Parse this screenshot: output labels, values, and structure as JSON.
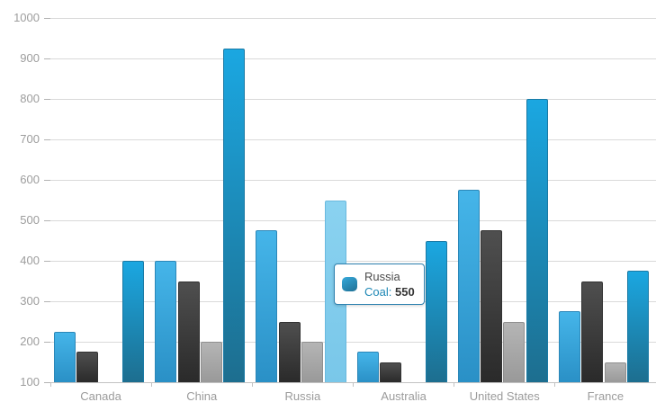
{
  "chart_data": {
    "type": "bar",
    "title": "",
    "categories": [
      "Canada",
      "China",
      "Russia",
      "Australia",
      "United States",
      "France"
    ],
    "series": [
      {
        "name": "series-1-light-blue",
        "values": [
          225,
          400,
          475,
          175,
          575,
          275
        ],
        "color_top": "#45b5e9",
        "color_bottom": "#2a90c6",
        "border_color": "#2b87b8"
      },
      {
        "name": "series-2-dark-gray",
        "values": [
          175,
          350,
          250,
          150,
          475,
          350
        ],
        "color_top": "#4f4f4f",
        "color_bottom": "#2a2a2a",
        "border_color": "#333333"
      },
      {
        "name": "series-3-light-gray",
        "values": [
          null,
          200,
          200,
          null,
          250,
          150
        ],
        "color_top": "#b5b5b5",
        "color_bottom": "#999999",
        "border_color": "#8f8f8f"
      },
      {
        "name": "Coal",
        "values": [
          400,
          925,
          550,
          450,
          800,
          375
        ],
        "color_top": "#1ba7e1",
        "color_bottom": "#1d6e8f",
        "border_color": "#1a7aa5"
      }
    ],
    "ylim": [
      100,
      1000
    ],
    "y_ticks": [
      100,
      200,
      300,
      400,
      500,
      600,
      700,
      800,
      900,
      1000
    ],
    "grid": true,
    "legend": "none",
    "highlight": {
      "category_index": 2,
      "series_index": 3,
      "color_top": "#8ad2f0",
      "color_bottom": "#79c7e9",
      "border_color": "#6ab9de"
    }
  },
  "tooltip": {
    "category": "Russia",
    "series_label": "Coal:",
    "value": "550"
  },
  "colors": {
    "grid": "#d9d9d9",
    "axis": "#c2c2c2",
    "label": "#9b9b9b",
    "tooltip_border": "#2e82b0",
    "tooltip_series_text": "#1d87b5"
  }
}
